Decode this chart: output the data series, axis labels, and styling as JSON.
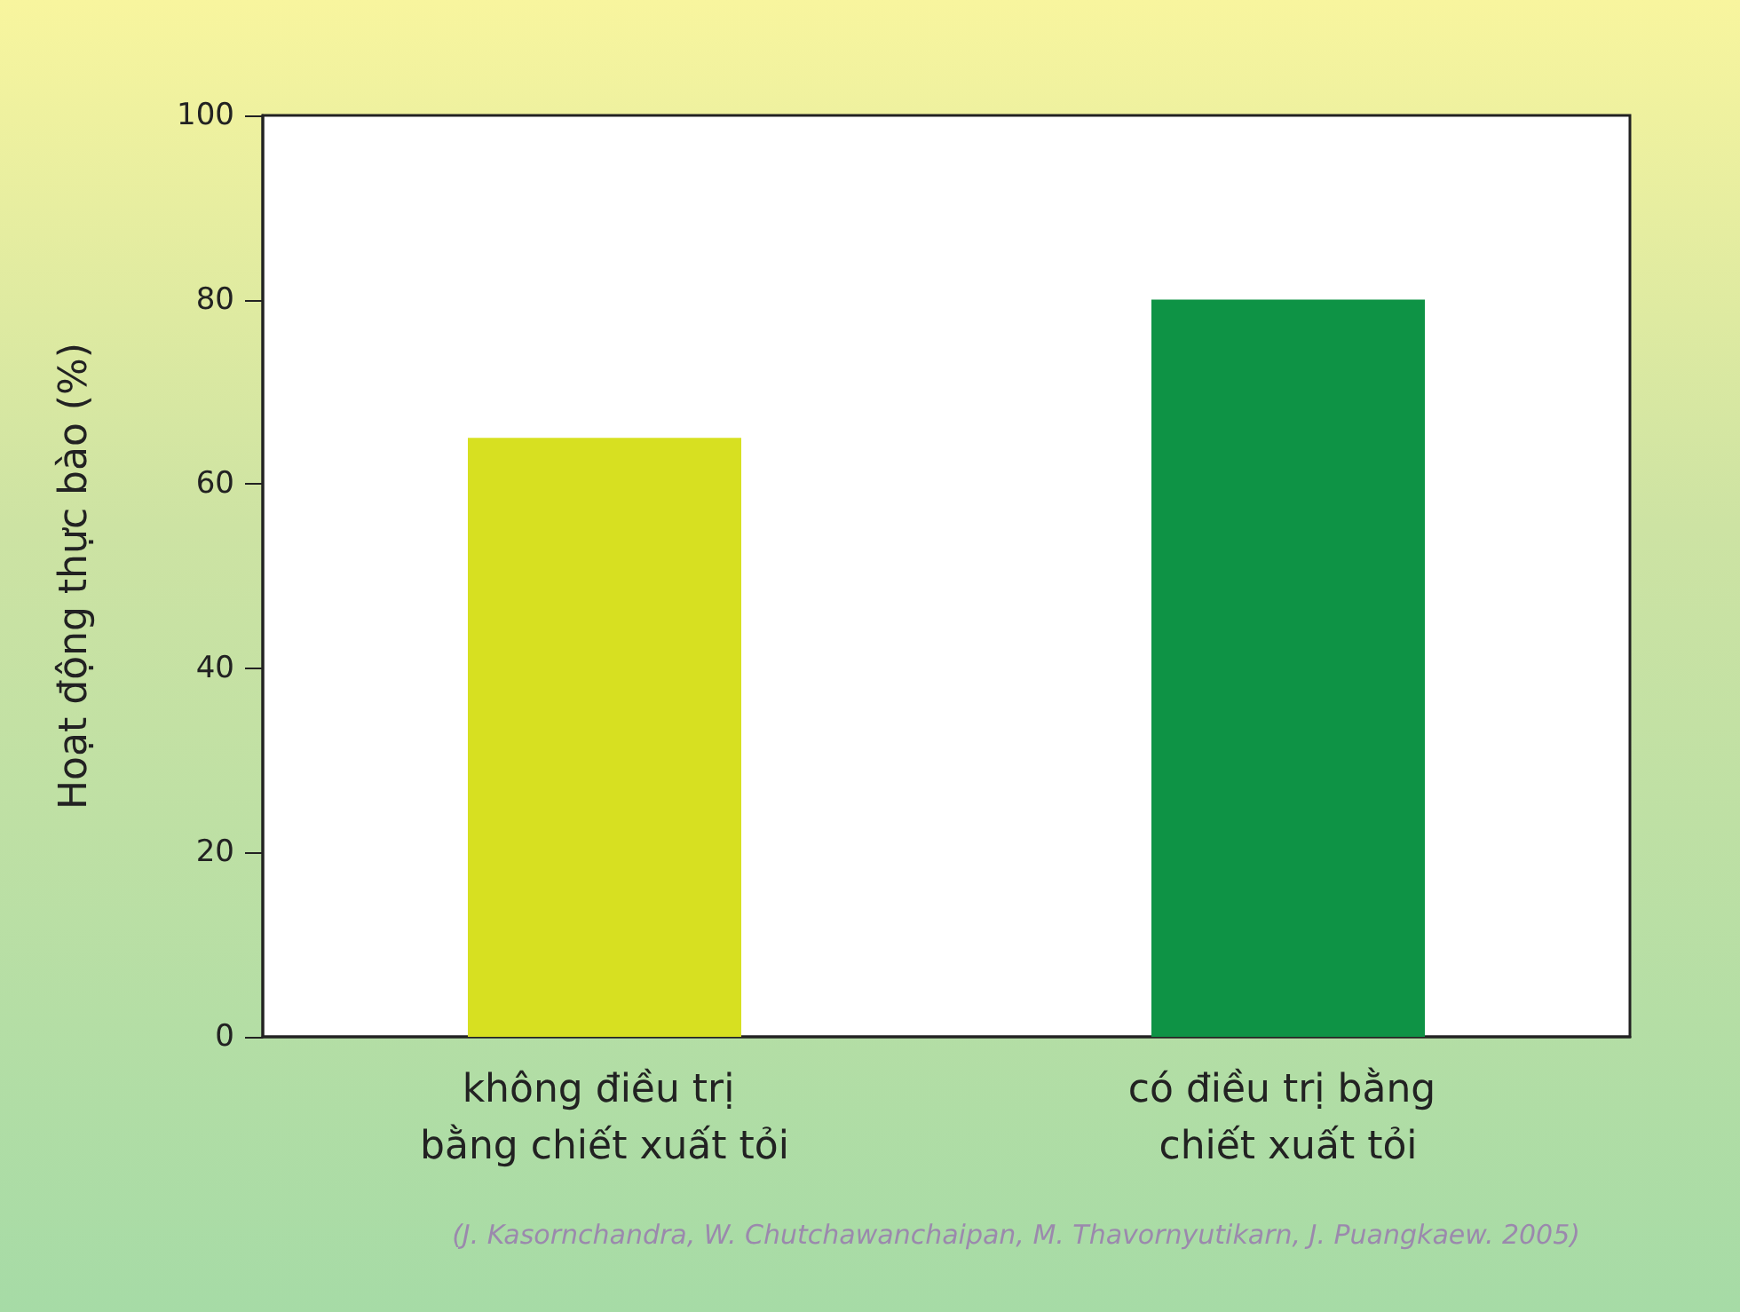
{
  "chart_data": {
    "type": "bar",
    "ylabel": "Hoạt động thực bào (%)",
    "categories": [
      "không điều trị bằng chiết xuất tỏi",
      "có điều trị bằng chiết xuất tỏi"
    ],
    "values": [
      65,
      80
    ],
    "colors": [
      "#d7e021",
      "#0e9345"
    ],
    "ylim": [
      0,
      100
    ],
    "yticks": [
      0,
      20,
      40,
      60,
      80,
      100
    ],
    "grid": false,
    "annotations": [
      "(J. Kasornchandra, W. Chutchawanchaipan, M. Thavornyutikarn, J. Puangkaew. 2005)"
    ]
  }
}
